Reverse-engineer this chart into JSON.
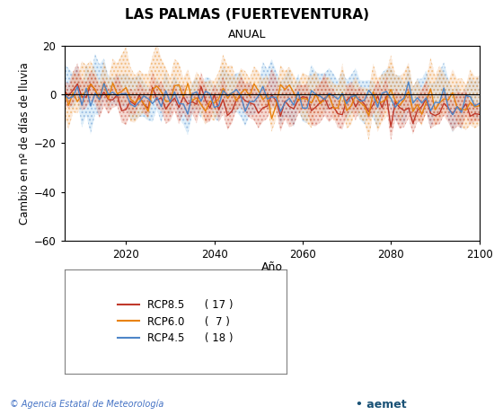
{
  "title": "LAS PALMAS (FUERTEVENTURA)",
  "subtitle": "ANUAL",
  "xlabel": "Año",
  "ylabel": "Cambio en nº de días de lluvia",
  "xlim": [
    2006,
    2100
  ],
  "ylim": [
    -60,
    20
  ],
  "yticks": [
    -60,
    -40,
    -20,
    0,
    20
  ],
  "xticks": [
    2020,
    2040,
    2060,
    2080,
    2100
  ],
  "rcp85_color": "#c0392b",
  "rcp60_color": "#e8820c",
  "rcp45_color": "#4e86c8",
  "rcp85_fill": "#e8a090",
  "rcp60_fill": "#f5cba7",
  "rcp45_fill": "#aed6f1",
  "rcp85_label": "RCP8.5",
  "rcp60_label": "RCP6.0",
  "rcp45_label": "RCP4.5",
  "rcp85_count": "17",
  "rcp60_count": "7",
  "rcp45_count": "18",
  "footer_left": "© Agencia Estatal de Meteorología",
  "footer_left_color": "#4472c4",
  "background_color": "#ffffff",
  "seed": 42
}
